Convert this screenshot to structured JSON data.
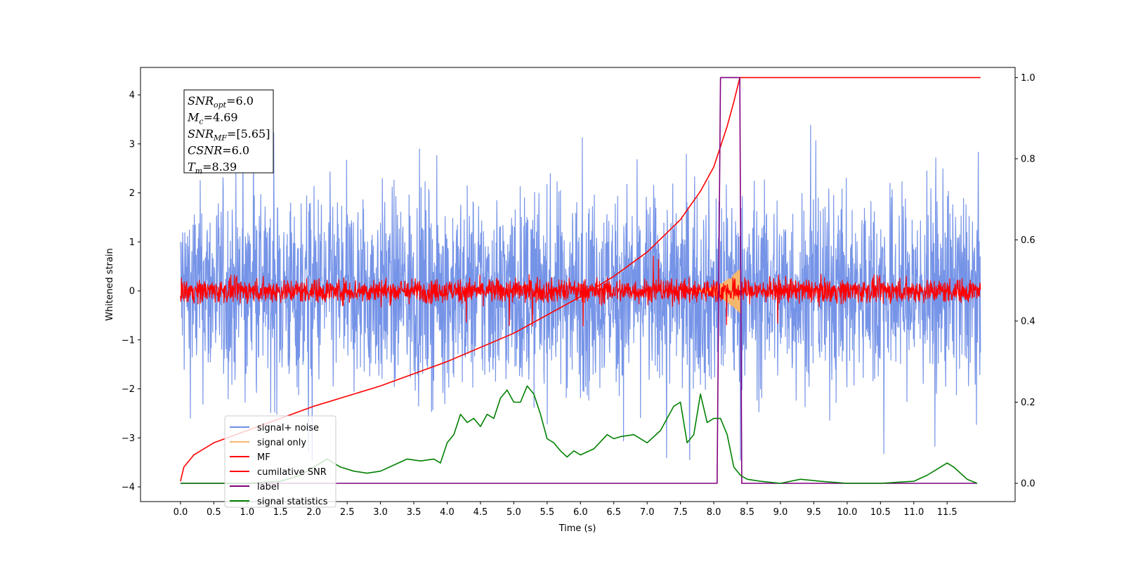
{
  "chart_data": {
    "type": "line",
    "xlabel": "Time (s)",
    "ylabel_left": "Whitened strain",
    "x_ticks": [
      "0.0",
      "0.5",
      "1.0",
      "1.5",
      "2.0",
      "2.5",
      "3.0",
      "3.5",
      "4.0",
      "4.5",
      "5.0",
      "5.5",
      "6.0",
      "6.5",
      "7.0",
      "7.5",
      "8.0",
      "8.5",
      "9.0",
      "9.5",
      "10.0",
      "10.5",
      "11.0",
      "11.5"
    ],
    "y_left_ticks": [
      "−4",
      "−3",
      "−2",
      "−1",
      "0",
      "1",
      "2",
      "3",
      "4"
    ],
    "y_right_ticks": [
      "0.0",
      "0.2",
      "0.4",
      "0.6",
      "0.8",
      "1.0"
    ],
    "xlim": [
      -0.6,
      12.52
    ],
    "ylim_left": [
      -4.3,
      4.56
    ],
    "ylim_right": [
      -0.045,
      1.025
    ],
    "annotation": {
      "lines": [
        {
          "main": "SNR",
          "sub": "opt",
          "rest": "=6.0"
        },
        {
          "main": "M",
          "sub": "c",
          "rest": "=4.69"
        },
        {
          "main": "SNR",
          "sub": "MF",
          "rest": "=[5.65]"
        },
        {
          "main": "CSNR",
          "sub": "",
          "rest": "=6.0"
        },
        {
          "main": "T",
          "sub": "m",
          "rest": "=8.39"
        }
      ]
    },
    "legend": {
      "placement": "lower-left",
      "entries": [
        {
          "label": "signal+ noise",
          "color": "#6f8ee6"
        },
        {
          "label": "signal only",
          "color": "#f5b76e"
        },
        {
          "label": "MF",
          "color": "#ff0000"
        },
        {
          "label": "cumilative SNR",
          "color": "#ff0000"
        },
        {
          "label": "label",
          "color": "#800080"
        },
        {
          "label": "signal statistics",
          "color": "#008000"
        }
      ]
    },
    "series": [
      {
        "name": "signal+ noise",
        "axis": "left",
        "color": "#6f8ee6",
        "style": "noise",
        "amplitude_typical": 1.0,
        "amplitude_peak": 3.6,
        "x_range": [
          0.0,
          12.0
        ]
      },
      {
        "name": "signal only",
        "axis": "left",
        "color": "#f5b76e",
        "style": "chirp",
        "x_range": [
          7.6,
          8.39
        ],
        "peak_amplitude": 0.45
      },
      {
        "name": "MF",
        "axis": "left",
        "color": "#ff0000",
        "style": "noise",
        "amplitude_typical": 0.12,
        "amplitude_peak": 0.75,
        "x_range": [
          0.0,
          12.0
        ]
      },
      {
        "name": "cumilative SNR",
        "axis": "right",
        "color": "#ff0000",
        "x": [
          0.0,
          0.05,
          0.2,
          0.5,
          1.0,
          2.0,
          3.0,
          4.0,
          5.0,
          6.0,
          6.5,
          7.0,
          7.5,
          7.8,
          8.0,
          8.2,
          8.3,
          8.39,
          12.0
        ],
        "y": [
          0.005,
          0.04,
          0.07,
          0.1,
          0.13,
          0.19,
          0.24,
          0.3,
          0.37,
          0.46,
          0.51,
          0.57,
          0.65,
          0.72,
          0.78,
          0.88,
          0.94,
          1.0,
          1.0
        ]
      },
      {
        "name": "label",
        "axis": "right",
        "color": "#800080",
        "x": [
          0.0,
          8.05,
          8.1,
          8.39,
          8.42,
          11.95
        ],
        "y": [
          0.0,
          0.0,
          1.0,
          1.0,
          0.0,
          0.0
        ]
      },
      {
        "name": "signal statistics",
        "axis": "right",
        "color": "#008000",
        "x": [
          0.0,
          0.5,
          1.0,
          1.5,
          1.8,
          2.0,
          2.2,
          2.4,
          2.6,
          2.8,
          3.0,
          3.2,
          3.4,
          3.6,
          3.8,
          3.9,
          4.0,
          4.1,
          4.2,
          4.3,
          4.4,
          4.5,
          4.6,
          4.7,
          4.8,
          4.9,
          5.0,
          5.1,
          5.2,
          5.3,
          5.4,
          5.5,
          5.6,
          5.7,
          5.8,
          5.9,
          6.0,
          6.2,
          6.4,
          6.5,
          6.6,
          6.8,
          7.0,
          7.2,
          7.4,
          7.5,
          7.6,
          7.7,
          7.8,
          7.9,
          8.0,
          8.1,
          8.2,
          8.3,
          8.4,
          8.5,
          8.7,
          9.0,
          9.3,
          9.6,
          10.0,
          10.5,
          11.0,
          11.2,
          11.4,
          11.5,
          11.6,
          11.8,
          11.95
        ],
        "y": [
          0.0,
          0.0,
          0.0,
          0.005,
          0.02,
          0.04,
          0.06,
          0.04,
          0.03,
          0.025,
          0.03,
          0.045,
          0.06,
          0.055,
          0.06,
          0.05,
          0.1,
          0.12,
          0.17,
          0.15,
          0.16,
          0.14,
          0.17,
          0.16,
          0.21,
          0.23,
          0.2,
          0.2,
          0.24,
          0.22,
          0.17,
          0.11,
          0.1,
          0.08,
          0.065,
          0.08,
          0.07,
          0.085,
          0.12,
          0.11,
          0.115,
          0.12,
          0.1,
          0.13,
          0.19,
          0.2,
          0.1,
          0.12,
          0.22,
          0.15,
          0.16,
          0.16,
          0.12,
          0.04,
          0.02,
          0.01,
          0.005,
          0.0,
          0.01,
          0.005,
          0.0,
          0.0,
          0.005,
          0.02,
          0.04,
          0.05,
          0.04,
          0.01,
          0.0
        ]
      }
    ]
  }
}
